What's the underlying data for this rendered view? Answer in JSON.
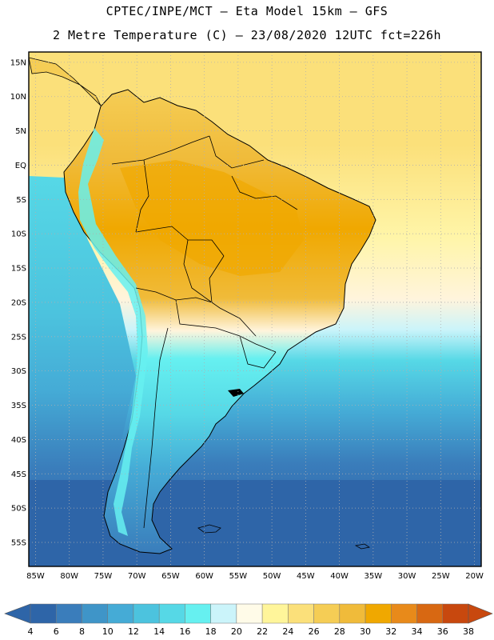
{
  "header": {
    "title_line1": "CPTEC/INPE/MCT –  Eta Model 15km – GFS",
    "title_line2": "2 Metre Temperature (C) – 23/08/2020 12UTC fct=226h"
  },
  "map": {
    "lat_labels": [
      "15N",
      "10N",
      "5N",
      "EQ",
      "5S",
      "10S",
      "15S",
      "20S",
      "25S",
      "30S",
      "35S",
      "40S",
      "45S",
      "50S",
      "55S"
    ],
    "lat_values": [
      15,
      10,
      5,
      0,
      -5,
      -10,
      -15,
      -20,
      -25,
      -30,
      -35,
      -40,
      -45,
      -50,
      -55
    ],
    "lon_labels": [
      "85W",
      "80W",
      "75W",
      "70W",
      "65W",
      "60W",
      "55W",
      "50W",
      "45W",
      "40W",
      "35W",
      "30W",
      "25W",
      "20W"
    ],
    "lon_values": [
      -85,
      -80,
      -75,
      -70,
      -65,
      -60,
      -55,
      -50,
      -45,
      -40,
      -35,
      -30,
      -25,
      -20
    ],
    "lon_range": [
      -86,
      -19
    ],
    "lat_range": [
      -58.5,
      16.5
    ]
  },
  "colorbar": {
    "labels": [
      "4",
      "6",
      "8",
      "10",
      "12",
      "14",
      "16",
      "18",
      "20",
      "22",
      "24",
      "26",
      "28",
      "30",
      "32",
      "34",
      "36",
      "38"
    ],
    "colors": [
      "#2e65a8",
      "#3a7dbb",
      "#3f95c8",
      "#45abd6",
      "#4cc3de",
      "#56d8e6",
      "#66f0f0",
      "#cbf4fa",
      "#fffbe8",
      "#fff59a",
      "#fbe07a",
      "#f5cd55",
      "#f0bb3a",
      "#f0a800",
      "#e88a1a",
      "#d86812",
      "#c8480e"
    ],
    "color_left": "#2e65a8",
    "color_right": "#c8480e",
    "units": "C"
  },
  "colors": {
    "ocean_south": "#2e65a8",
    "ocean_mid": "#4cc3de",
    "ocean_tropical": "#fbe07a",
    "border": "#000000",
    "grid": "#b0b0b0"
  }
}
